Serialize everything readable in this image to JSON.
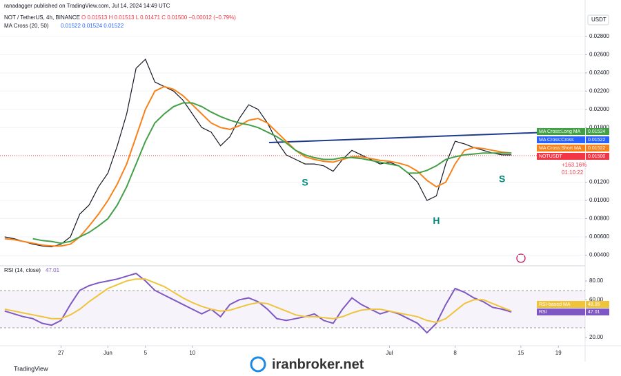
{
  "header": {
    "published": "ranadagger published on TradingView.com, Jul 14, 2024 14:49 UTC",
    "symbol": "NOT / TetherUS, 4h, BINANCE",
    "ohlc": "O 0.01513 H 0.01513 L 0.01471 C 0.01500 −0.00012 (−0.79%)",
    "ma_legend": "MA Cross (20, 50)",
    "ma_values": "0.01522 0.01524 0.01522",
    "rsi_legend": "RSI (14, close)",
    "rsi_value": "47.01",
    "currency": "USDT"
  },
  "chart_data": [
    {
      "type": "line",
      "x": [
        0,
        1,
        2,
        3,
        4,
        5,
        6,
        7,
        8,
        9,
        10,
        11,
        12,
        13,
        14,
        15,
        16,
        17,
        18,
        19,
        20,
        21,
        22,
        23,
        24,
        25,
        26,
        27,
        28,
        29,
        30,
        31,
        32,
        33,
        34,
        35,
        36,
        37,
        38,
        39,
        40,
        41,
        42,
        43,
        44,
        45,
        46,
        47,
        48,
        49,
        50,
        51,
        52,
        53,
        54
      ],
      "series": [
        {
          "name": "NOTUSDT",
          "color": "#131722",
          "values": [
            0.006,
            0.0058,
            0.0055,
            0.0052,
            0.005,
            0.0049,
            0.0052,
            0.006,
            0.0085,
            0.0095,
            0.0115,
            0.013,
            0.016,
            0.0195,
            0.0245,
            0.0255,
            0.023,
            0.0225,
            0.022,
            0.021,
            0.0195,
            0.018,
            0.0175,
            0.016,
            0.017,
            0.019,
            0.0205,
            0.02,
            0.0185,
            0.0165,
            0.015,
            0.0145,
            0.014,
            0.014,
            0.0138,
            0.0132,
            0.0145,
            0.0155,
            0.015,
            0.0145,
            0.014,
            0.0142,
            0.0138,
            0.013,
            0.012,
            0.01,
            0.0105,
            0.014,
            0.0165,
            0.0162,
            0.0158,
            0.0155,
            0.0152,
            0.015,
            0.015
          ]
        },
        {
          "name": "MA Cross:Short MA",
          "color": "#f7821b",
          "values": [
            0.0058,
            0.0057,
            0.0055,
            0.0053,
            0.0051,
            0.005,
            0.005,
            0.0052,
            0.006,
            0.0072,
            0.0085,
            0.01,
            0.0118,
            0.014,
            0.017,
            0.02,
            0.022,
            0.0225,
            0.0222,
            0.0215,
            0.0205,
            0.0195,
            0.0185,
            0.018,
            0.0178,
            0.0182,
            0.0188,
            0.019,
            0.0185,
            0.0175,
            0.0165,
            0.0155,
            0.0148,
            0.0145,
            0.0143,
            0.0142,
            0.0145,
            0.0148,
            0.0148,
            0.0146,
            0.0144,
            0.0143,
            0.0141,
            0.0138,
            0.0132,
            0.0122,
            0.0115,
            0.012,
            0.014,
            0.0155,
            0.0158,
            0.0157,
            0.0155,
            0.0153,
            0.0152
          ]
        },
        {
          "name": "MA Cross:Long MA",
          "color": "#43a047",
          "values": [
            null,
            null,
            null,
            0.0058,
            0.0056,
            0.0055,
            0.0053,
            0.0055,
            0.006,
            0.0065,
            0.0072,
            0.008,
            0.0095,
            0.0115,
            0.014,
            0.0165,
            0.0185,
            0.0195,
            0.0203,
            0.0207,
            0.0207,
            0.0203,
            0.0197,
            0.0192,
            0.0188,
            0.0185,
            0.0183,
            0.018,
            0.0175,
            0.017,
            0.0163,
            0.0155,
            0.015,
            0.0147,
            0.0145,
            0.0145,
            0.0147,
            0.0147,
            0.0146,
            0.0144,
            0.0142,
            0.014,
            0.0138,
            0.013,
            0.013,
            0.0133,
            0.0138,
            0.0145,
            0.0148,
            0.015,
            0.0151,
            0.0152,
            0.0152,
            0.0152,
            0.0152
          ]
        }
      ],
      "xlim": [
        -0.5,
        61.85
      ],
      "ylim": [
        0.0029,
        0.032
      ],
      "xticks": [
        {
          "value": 6,
          "label": "27"
        },
        {
          "value": 11,
          "label": "Jun"
        },
        {
          "value": 15,
          "label": "5"
        },
        {
          "value": 20,
          "label": "10"
        },
        {
          "value": 41,
          "label": "Jul"
        },
        {
          "value": 48,
          "label": "8"
        },
        {
          "value": 55,
          "label": "15"
        },
        {
          "value": 59,
          "label": "19"
        }
      ],
      "yticks": [
        {
          "value": 0.028,
          "label": "0.02800"
        },
        {
          "value": 0.026,
          "label": "0.02600"
        },
        {
          "value": 0.024,
          "label": "0.02400"
        },
        {
          "value": 0.022,
          "label": "0.02200"
        },
        {
          "value": 0.02,
          "label": "0.02000"
        },
        {
          "value": 0.018,
          "label": "0.01800"
        },
        {
          "value": 0.012,
          "label": "0.01200"
        },
        {
          "value": 0.01,
          "label": "0.01000"
        },
        {
          "value": 0.008,
          "label": "0.00800"
        },
        {
          "value": 0.006,
          "label": "0.00600"
        },
        {
          "value": 0.004,
          "label": "0.00400"
        }
      ],
      "grid": true,
      "annotations": [
        {
          "text": "S",
          "x": 32,
          "y": 0.0119
        },
        {
          "text": "H",
          "x": 46,
          "y": 0.0077
        },
        {
          "text": "S",
          "x": 53,
          "y": 0.0123
        }
      ]
    },
    {
      "type": "line",
      "x": [
        0,
        1,
        2,
        3,
        4,
        5,
        6,
        7,
        8,
        9,
        10,
        11,
        12,
        13,
        14,
        15,
        16,
        17,
        18,
        19,
        20,
        21,
        22,
        23,
        24,
        25,
        26,
        27,
        28,
        29,
        30,
        31,
        32,
        33,
        34,
        35,
        36,
        37,
        38,
        39,
        40,
        41,
        42,
        43,
        44,
        45,
        46,
        47,
        48,
        49,
        50,
        51,
        52,
        53,
        54
      ],
      "series": [
        {
          "name": "RSI",
          "color": "#7e57c2",
          "values": [
            48,
            45,
            42,
            40,
            35,
            33,
            38,
            55,
            70,
            75,
            78,
            80,
            82,
            85,
            88,
            80,
            70,
            65,
            60,
            55,
            50,
            45,
            50,
            42,
            55,
            60,
            62,
            58,
            50,
            40,
            38,
            40,
            42,
            45,
            38,
            35,
            50,
            62,
            55,
            50,
            45,
            48,
            45,
            40,
            35,
            25,
            35,
            55,
            72,
            68,
            62,
            58,
            52,
            50,
            47.01
          ]
        },
        {
          "name": "RSI-based MA",
          "color": "#f0c43a",
          "values": [
            50,
            48,
            46,
            44,
            42,
            40,
            40,
            44,
            50,
            58,
            65,
            72,
            76,
            80,
            82,
            82,
            78,
            74,
            68,
            62,
            57,
            53,
            50,
            48,
            49,
            52,
            55,
            57,
            56,
            52,
            48,
            44,
            42,
            42,
            41,
            40,
            42,
            46,
            49,
            50,
            50,
            48,
            46,
            44,
            42,
            38,
            36,
            40,
            48,
            56,
            60,
            60,
            56,
            52,
            48.05
          ]
        }
      ],
      "xlim": [
        -0.5,
        61.85
      ],
      "ylim": [
        12.7,
        94.6
      ],
      "yticks": [
        {
          "value": 80,
          "label": "80.00"
        },
        {
          "value": 60,
          "label": "60.00"
        },
        {
          "value": 20,
          "label": "20.00"
        }
      ]
    }
  ],
  "price_tags": [
    {
      "name": "MA Cross:Long MA",
      "value": "0.01524",
      "color": "#43a047"
    },
    {
      "name": "MA Cross:Cross",
      "value": "0.01522",
      "color": "#2962ff"
    },
    {
      "name": "MA Cross:Short MA",
      "value": "0.01522",
      "color": "#f7821b"
    },
    {
      "name": "NOTUSDT",
      "value": "0.01500",
      "color": "#f23645"
    }
  ],
  "price_change": "+163.16%",
  "countdown": "01:10:22",
  "rsi_tags": [
    {
      "name": "RSI-based MA",
      "value": "48.05",
      "color": "#f0c43a"
    },
    {
      "name": "RSI",
      "value": "47.01",
      "color": "#7e57c2"
    }
  ],
  "footer": "TradingView",
  "watermark": "iranbroker.net"
}
